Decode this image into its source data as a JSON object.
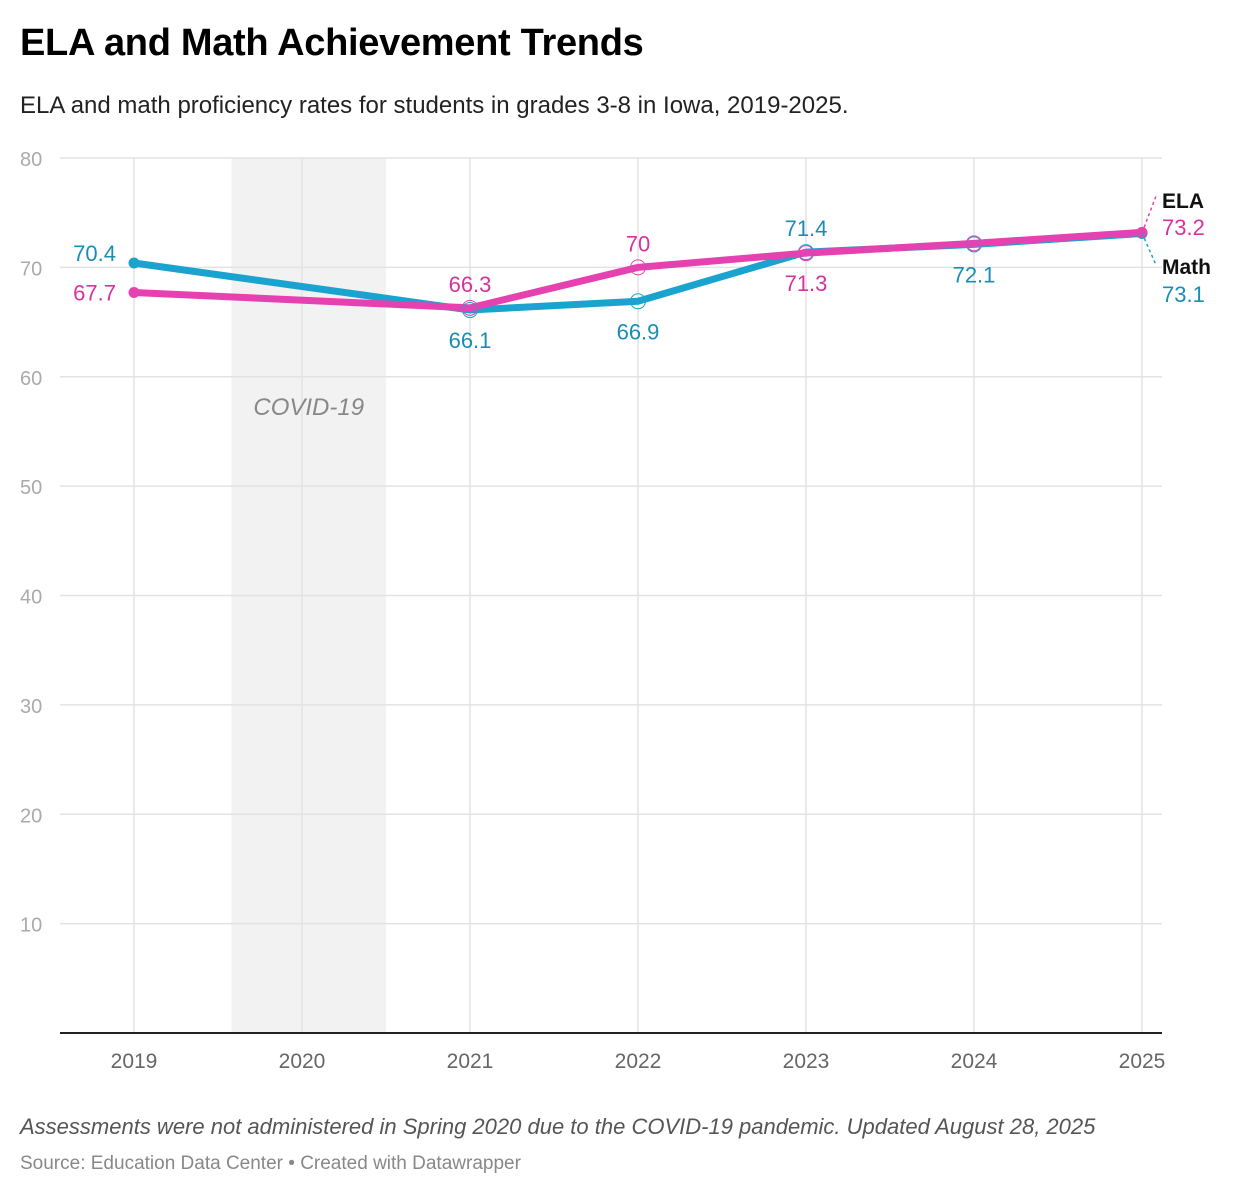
{
  "title": "ELA and Math Achievement Trends",
  "subtitle": "ELA and math proficiency rates for students in grades 3-8 in Iowa, 2019-2025.",
  "note": "Assessments were not administered in Spring 2020 due to the COVID-19 pandemic. Updated August 28, 2025",
  "source": "Source: Education Data Center • Created with Datawrapper",
  "chart_data": {
    "type": "line",
    "title": "ELA and Math Achievement Trends",
    "xlabel": "",
    "ylabel": "",
    "x": [
      2019,
      2020,
      2021,
      2022,
      2023,
      2024,
      2025
    ],
    "x_tick_labels": [
      "2019",
      "2020",
      "2021",
      "2022",
      "2023",
      "2024",
      "2025"
    ],
    "ylim": [
      0,
      80
    ],
    "y_ticks": [
      10,
      20,
      30,
      40,
      50,
      60,
      70,
      80
    ],
    "y_tick_labels": [
      "10",
      "20",
      "30",
      "40",
      "50",
      "60",
      "70",
      "80"
    ],
    "grid": true,
    "annotation": {
      "label": "COVID-19",
      "x_range": [
        2019.58,
        2020.5
      ]
    },
    "series": [
      {
        "name": "Math",
        "color": "#1ba3d0",
        "label_color": "#1a8db5",
        "points": [
          {
            "x": 2019,
            "y": 70.4,
            "label": "70.4",
            "pos": "left"
          },
          {
            "x": 2021,
            "y": 66.1,
            "label": "66.1",
            "pos": "below"
          },
          {
            "x": 2022,
            "y": 66.9,
            "label": "66.9",
            "pos": "below"
          },
          {
            "x": 2023,
            "y": 71.4,
            "label": "71.4",
            "pos": "above"
          },
          {
            "x": 2024,
            "y": 72.1,
            "label": "72.1",
            "pos": "below"
          },
          {
            "x": 2025,
            "y": 73.1,
            "label": "73.1",
            "pos": "end"
          }
        ]
      },
      {
        "name": "ELA",
        "color": "#e541b0",
        "label_color": "#d6339f",
        "points": [
          {
            "x": 2019,
            "y": 67.7,
            "label": "67.7",
            "pos": "left"
          },
          {
            "x": 2021,
            "y": 66.3,
            "label": "66.3",
            "pos": "above"
          },
          {
            "x": 2022,
            "y": 70,
            "label": "70",
            "pos": "above"
          },
          {
            "x": 2023,
            "y": 71.3,
            "label": "71.3",
            "pos": "below"
          },
          {
            "x": 2024,
            "y": 72.2,
            "label": null,
            "pos": "none"
          },
          {
            "x": 2025,
            "y": 73.2,
            "label": "73.2",
            "pos": "end"
          }
        ]
      }
    ]
  }
}
